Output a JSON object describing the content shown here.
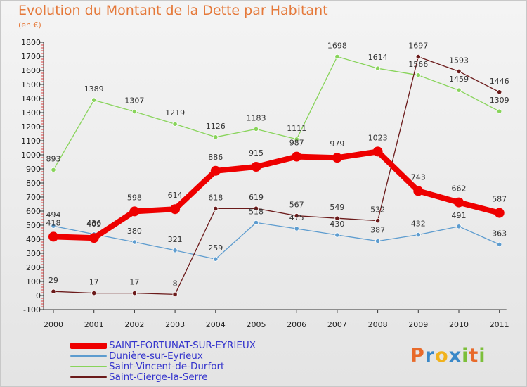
{
  "title": "Evolution du Montant de la Dette par Habitant",
  "unit": "(en €)",
  "logo": {
    "text": "Proxiti",
    "letters": [
      {
        "ch": "P",
        "color": "#e86a2a"
      },
      {
        "ch": "r",
        "color": "#3a88c8"
      },
      {
        "ch": "o",
        "color": "#f1b21d"
      },
      {
        "ch": "x",
        "color": "#3a88c8"
      },
      {
        "ch": "i",
        "color": "#7cbf3a"
      },
      {
        "ch": "t",
        "color": "#e86a2a"
      },
      {
        "ch": "i",
        "color": "#7cbf3a"
      }
    ]
  },
  "chart_data": {
    "type": "line",
    "title": "Evolution du Montant de la Dette par Habitant",
    "ylabel": "(en €)",
    "xlabel": "",
    "ylim": [
      -100,
      1800
    ],
    "yticks": [
      -100,
      0,
      100,
      200,
      300,
      400,
      500,
      600,
      700,
      800,
      900,
      1000,
      1100,
      1200,
      1300,
      1400,
      1500,
      1600,
      1700,
      1800
    ],
    "grid": false,
    "legend": "bottom-left",
    "categories": [
      "2000",
      "2001",
      "2002",
      "2003",
      "2004",
      "2005",
      "2006",
      "2007",
      "2008",
      "2009",
      "2010",
      "2011"
    ],
    "series": [
      {
        "name": "Saint-Vincent-de-Durfort",
        "color": "#88d45a",
        "values": [
          893,
          1389,
          1307,
          1219,
          1126,
          1183,
          1111,
          1698,
          1614,
          1566,
          1459,
          1309
        ]
      },
      {
        "name": "Dunière-sur-Eyrieux",
        "color": "#5d9ccf",
        "values": [
          494,
          436,
          380,
          321,
          259,
          518,
          475,
          430,
          387,
          432,
          491,
          363
        ]
      },
      {
        "name": "Saint-Cierge-la-Serre",
        "color": "#6b1a1a",
        "values": [
          29,
          17,
          17,
          8,
          618,
          619,
          567,
          549,
          532,
          1697,
          1593,
          1446
        ]
      },
      {
        "name": "SAINT-FORTUNAT-SUR-EYRIEUX",
        "color": "#ee0000",
        "values": [
          418,
          409,
          598,
          614,
          886,
          915,
          987,
          979,
          1023,
          743,
          662,
          587
        ]
      }
    ],
    "legend_order": [
      "SAINT-FORTUNAT-SUR-EYRIEUX",
      "Dunière-sur-Eyrieux",
      "Saint-Vincent-de-Durfort",
      "Saint-Cierge-la-Serre"
    ]
  }
}
